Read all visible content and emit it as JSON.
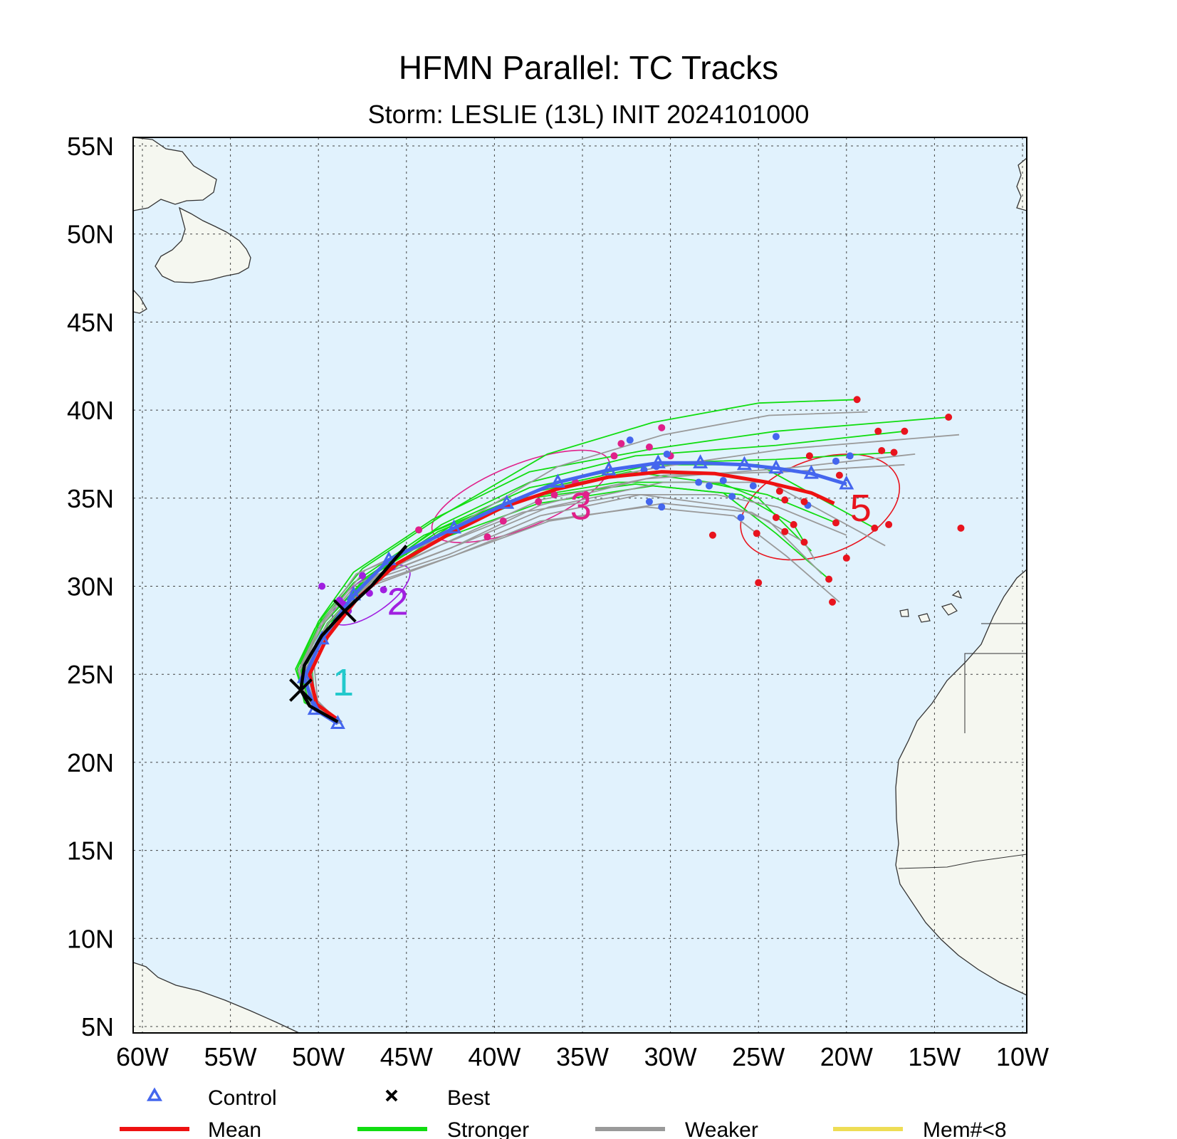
{
  "title": "HFMN Parallel: TC Tracks",
  "subtitle": "Storm: LESLIE (13L) INIT 2024101000",
  "map": {
    "lon_range": [
      -60,
      -10
    ],
    "lat_range": [
      5,
      55
    ],
    "lon_ticks": [
      "60W",
      "55W",
      "50W",
      "45W",
      "40W",
      "35W",
      "30W",
      "25W",
      "20W",
      "15W",
      "10W"
    ],
    "lat_ticks": [
      "55N",
      "50N",
      "45N",
      "40N",
      "35N",
      "30N",
      "25N",
      "20N",
      "15N",
      "10N",
      "5N"
    ],
    "grid": true,
    "ocean_color": "#e1f2fd",
    "land_color": "#f5f7f0"
  },
  "day_labels": [
    {
      "text": "1",
      "lon": -49.2,
      "lat": 24.6,
      "color": "#22c9cc"
    },
    {
      "text": "2",
      "lon": -46.1,
      "lat": 29.2,
      "color": "#a01fe0"
    },
    {
      "text": "3",
      "lon": -35.7,
      "lat": 34.6,
      "color": "#e0208a"
    },
    {
      "text": "5",
      "lon": -19.8,
      "lat": 34.5,
      "color": "#e8141e"
    }
  ],
  "legend": {
    "control": "Control",
    "best": "Best",
    "mean": "Mean",
    "stronger": "Stronger",
    "weaker": "Weaker",
    "mem": "Mem#<8",
    "colors": {
      "control": "#4466ee",
      "best": "#000000",
      "mean": "#ee1111",
      "stronger": "#11dd11",
      "weaker": "#9a9a9a",
      "mem": "#eedd55"
    }
  },
  "chart_data": {
    "type": "map-tracks",
    "control_track": [
      [
        -48.9,
        22.2
      ],
      [
        -50.2,
        23.0
      ],
      [
        -50.8,
        24.8
      ],
      [
        -49.8,
        27.0
      ],
      [
        -48.0,
        29.5
      ],
      [
        -46.0,
        31.5
      ],
      [
        -42.3,
        33.3
      ],
      [
        -39.3,
        34.7
      ],
      [
        -36.4,
        35.9
      ],
      [
        -33.5,
        36.6
      ],
      [
        -30.7,
        37.0
      ],
      [
        -28.3,
        37.0
      ],
      [
        -25.8,
        36.9
      ],
      [
        -24.0,
        36.7
      ],
      [
        -22.0,
        36.4
      ],
      [
        -20.0,
        35.8
      ]
    ],
    "best_track": [
      [
        -48.9,
        22.3
      ],
      [
        -50.5,
        23.2
      ],
      [
        -51.0,
        24.1
      ],
      [
        -50.8,
        25.5
      ],
      [
        -49.8,
        27.2
      ],
      [
        -48.5,
        28.6
      ],
      [
        -47.0,
        30.0
      ],
      [
        -45.0,
        32.3
      ]
    ],
    "mean_track": [
      [
        -49.0,
        22.5
      ],
      [
        -50.1,
        23.3
      ],
      [
        -50.5,
        25.0
      ],
      [
        -49.5,
        27.1
      ],
      [
        -47.8,
        29.3
      ],
      [
        -45.5,
        31.3
      ],
      [
        -42.5,
        33.0
      ],
      [
        -39.5,
        34.5
      ],
      [
        -36.5,
        35.5
      ],
      [
        -33.5,
        36.2
      ],
      [
        -30.5,
        36.5
      ],
      [
        -27.5,
        36.4
      ],
      [
        -24.5,
        35.9
      ],
      [
        -22.0,
        35.3
      ],
      [
        -20.7,
        34.7
      ]
    ],
    "forecast_ellipses": [
      {
        "day": "2",
        "center": [
          -47.0,
          29.5
        ],
        "rx_deg": 2.6,
        "ry_deg": 1.0,
        "rotate": -35,
        "color": "#a01fe0"
      },
      {
        "day": "3",
        "center": [
          -38.5,
          35.1
        ],
        "rx_deg": 5.4,
        "ry_deg": 1.8,
        "rotate": -22,
        "color": "#e0208a"
      },
      {
        "day": "5",
        "center": [
          -21.5,
          34.5
        ],
        "rx_deg": 4.7,
        "ry_deg": 2.7,
        "rotate": -20,
        "color": "#e8141e"
      }
    ],
    "end_points": [
      [
        -19.4,
        40.6
      ],
      [
        -14.2,
        39.6
      ],
      [
        -16.7,
        38.8
      ],
      [
        -18.2,
        38.8
      ],
      [
        -17.3,
        37.6
      ],
      [
        -18.0,
        37.7
      ],
      [
        -13.5,
        33.3
      ],
      [
        -17.6,
        33.5
      ],
      [
        -18.4,
        33.3
      ],
      [
        -20.4,
        36.3
      ],
      [
        -20.6,
        33.6
      ],
      [
        -20.0,
        31.6
      ],
      [
        -21.0,
        30.4
      ],
      [
        -20.8,
        29.1
      ],
      [
        -22.4,
        32.5
      ],
      [
        -23.0,
        33.5
      ],
      [
        -23.5,
        33.1
      ],
      [
        -25.0,
        30.2
      ],
      [
        -25.1,
        33.0
      ],
      [
        -24.0,
        33.9
      ],
      [
        -23.8,
        35.4
      ],
      [
        -22.1,
        37.4
      ],
      [
        -22.4,
        34.8
      ],
      [
        -23.5,
        34.9
      ],
      [
        -27.6,
        32.9
      ]
    ],
    "day4_points": [
      [
        -32.3,
        38.3
      ],
      [
        -31.2,
        34.8
      ],
      [
        -30.5,
        34.5
      ],
      [
        -28.4,
        35.9
      ],
      [
        -27.8,
        35.7
      ],
      [
        -27.0,
        36.0
      ],
      [
        -26.5,
        35.1
      ],
      [
        -26.0,
        33.9
      ],
      [
        -25.3,
        35.7
      ],
      [
        -24.0,
        38.5
      ],
      [
        -22.2,
        34.6
      ],
      [
        -20.6,
        37.1
      ],
      [
        -19.8,
        37.4
      ],
      [
        -30.2,
        37.5
      ],
      [
        -31.5,
        36.6
      ],
      [
        -30.8,
        36.8
      ]
    ],
    "day3_points": [
      [
        -44.3,
        33.2
      ],
      [
        -40.4,
        32.8
      ],
      [
        -39.5,
        33.7
      ],
      [
        -37.5,
        34.8
      ],
      [
        -36.6,
        35.2
      ],
      [
        -33.2,
        37.4
      ],
      [
        -32.8,
        38.1
      ],
      [
        -31.2,
        37.9
      ],
      [
        -30.5,
        39.0
      ],
      [
        -30.0,
        37.4
      ],
      [
        -35.4,
        35.9
      ],
      [
        -34.8,
        35.2
      ]
    ],
    "day2_points": [
      [
        -49.8,
        30.0
      ],
      [
        -48.8,
        29.2
      ],
      [
        -48.3,
        28.6
      ],
      [
        -47.1,
        29.6
      ],
      [
        -46.3,
        29.8
      ],
      [
        -45.8,
        31.1
      ],
      [
        -48.6,
        29.0
      ],
      [
        -47.5,
        30.6
      ]
    ],
    "ensemble_tracks": [
      {
        "color": "#11dd11",
        "points": [
          [
            -49,
            22.4
          ],
          [
            -50.5,
            23.5
          ],
          [
            -51,
            25.6
          ],
          [
            -49.8,
            28.2
          ],
          [
            -47.5,
            31.0
          ],
          [
            -43,
            34.0
          ],
          [
            -37,
            37.5
          ],
          [
            -31,
            39.3
          ],
          [
            -25,
            40.4
          ],
          [
            -19.4,
            40.6
          ]
        ]
      },
      {
        "color": "#11dd11",
        "points": [
          [
            -49,
            22.3
          ],
          [
            -50.8,
            23.4
          ],
          [
            -51.2,
            25.3
          ],
          [
            -50,
            28.0
          ],
          [
            -48,
            30.8
          ],
          [
            -43.5,
            33.8
          ],
          [
            -38,
            36.5
          ],
          [
            -31,
            37.8
          ],
          [
            -24,
            38.8
          ],
          [
            -14.2,
            39.6
          ]
        ]
      },
      {
        "color": "#11dd11",
        "points": [
          [
            -49,
            22.5
          ],
          [
            -50.3,
            23.6
          ],
          [
            -50.6,
            25.7
          ],
          [
            -49.3,
            28.1
          ],
          [
            -47,
            30.6
          ],
          [
            -43,
            33.5
          ],
          [
            -38,
            35.9
          ],
          [
            -32,
            37.4
          ],
          [
            -24,
            38.0
          ],
          [
            -16.7,
            38.8
          ]
        ]
      },
      {
        "color": "#11dd11",
        "points": [
          [
            -48.8,
            22.4
          ],
          [
            -50.4,
            23.6
          ],
          [
            -50.9,
            25.6
          ],
          [
            -49.6,
            28.0
          ],
          [
            -47.3,
            30.5
          ],
          [
            -43.3,
            33.2
          ],
          [
            -38,
            35.6
          ],
          [
            -31,
            37.0
          ],
          [
            -24,
            37.2
          ],
          [
            -17.3,
            37.6
          ]
        ]
      },
      {
        "color": "#11dd11",
        "points": [
          [
            -49,
            22.3
          ],
          [
            -50.6,
            23.3
          ],
          [
            -51,
            25.2
          ],
          [
            -49.6,
            27.7
          ],
          [
            -47.2,
            30.1
          ],
          [
            -43,
            32.7
          ],
          [
            -37.5,
            34.7
          ],
          [
            -31,
            35.7
          ],
          [
            -26,
            35.2
          ],
          [
            -23,
            33.5
          ],
          [
            -22.4,
            32.5
          ]
        ]
      },
      {
        "color": "#11dd11",
        "points": [
          [
            -49,
            22.4
          ],
          [
            -50.4,
            23.5
          ],
          [
            -50.8,
            25.5
          ],
          [
            -49.5,
            27.9
          ],
          [
            -47,
            30.3
          ],
          [
            -43,
            33.0
          ],
          [
            -38,
            35.0
          ],
          [
            -32,
            35.8
          ],
          [
            -27,
            35.3
          ],
          [
            -24,
            33.0
          ],
          [
            -21,
            30.4
          ]
        ]
      },
      {
        "color": "#11dd11",
        "points": [
          [
            -48.9,
            22.3
          ],
          [
            -50.7,
            23.4
          ],
          [
            -51.3,
            25.3
          ],
          [
            -50.2,
            27.6
          ],
          [
            -48,
            30.2
          ],
          [
            -44,
            32.9
          ],
          [
            -39,
            34.9
          ],
          [
            -33,
            35.9
          ],
          [
            -28,
            35.9
          ],
          [
            -24.5,
            35.2
          ],
          [
            -20.6,
            33.6
          ]
        ]
      },
      {
        "color": "#11dd11",
        "points": [
          [
            -49,
            22.4
          ],
          [
            -50.2,
            23.6
          ],
          [
            -50.4,
            25.7
          ],
          [
            -49.1,
            28.2
          ],
          [
            -46.8,
            30.7
          ],
          [
            -42.5,
            33.4
          ],
          [
            -37.5,
            35.5
          ],
          [
            -31,
            36.9
          ],
          [
            -25,
            36.9
          ],
          [
            -18.4,
            33.3
          ]
        ]
      },
      {
        "color": "#11dd11",
        "points": [
          [
            -49,
            22.3
          ],
          [
            -50.6,
            23.5
          ],
          [
            -51,
            25.4
          ],
          [
            -49.7,
            27.9
          ],
          [
            -47.3,
            30.4
          ],
          [
            -43.2,
            33.1
          ],
          [
            -38,
            35.3
          ],
          [
            -32.3,
            36.5
          ],
          [
            -27,
            35.8
          ],
          [
            -25,
            35.0
          ],
          [
            -22,
            32.0
          ]
        ]
      }
    ]
  }
}
